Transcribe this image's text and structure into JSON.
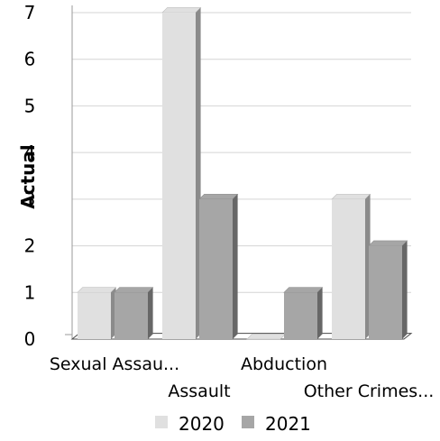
{
  "chart_data": {
    "type": "bar",
    "categories": [
      "Sexual Assau...",
      "Assault",
      "Abduction",
      "Other Crimes..."
    ],
    "series": [
      {
        "name": "2020",
        "values": [
          1,
          7,
          0,
          3
        ],
        "color": "#e0e0e0"
      },
      {
        "name": "2021",
        "values": [
          1,
          3,
          1,
          2
        ],
        "color": "#a6a6a6"
      }
    ],
    "title": "",
    "xlabel": "",
    "ylabel": "Actual",
    "ylim": [
      0,
      7
    ],
    "yticks": [
      "0",
      "1",
      "2",
      "3",
      "4",
      "5",
      "6",
      "7"
    ],
    "grid": true,
    "legend_position": "bottom",
    "three_d": true
  }
}
